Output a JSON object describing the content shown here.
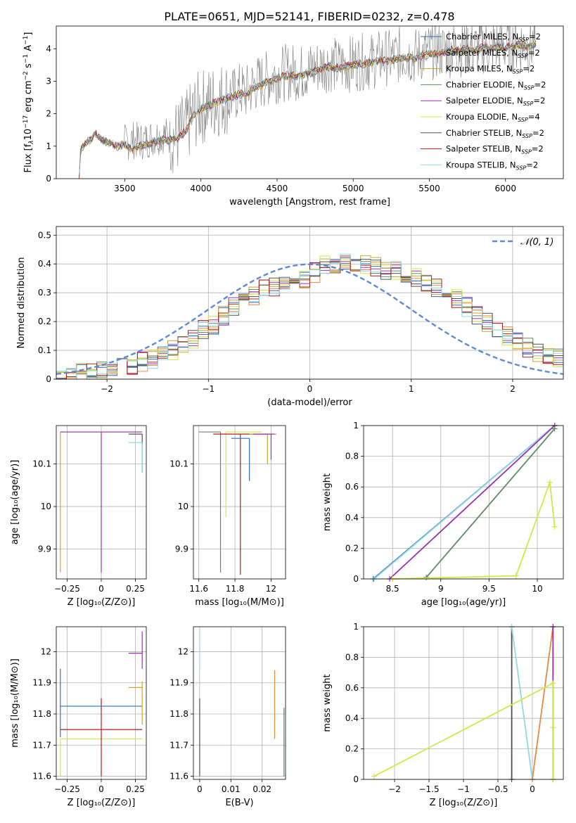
{
  "figure_title": "PLATE=0651, MJD=52141, FIBERID=0232, z=0.478",
  "legend_entries": [
    {
      "label": "Chabrier MILES, N",
      "sub": "SSP",
      "suffix": "=2",
      "color": "#2e6fb4"
    },
    {
      "label": "Salpeter MILES, N",
      "sub": "SSP",
      "suffix": "=2",
      "color": "#e58a3e"
    },
    {
      "label": "Kroupa MILES, N",
      "sub": "SSP",
      "suffix": "=2",
      "color": "#c9a43a"
    },
    {
      "label": "Chabrier ELODIE, N",
      "sub": "SSP",
      "suffix": "=2",
      "color": "#5e8c62"
    },
    {
      "label": "Salpeter ELODIE, N",
      "sub": "SSP",
      "suffix": "=2",
      "color": "#9b31b0"
    },
    {
      "label": "Kroupa ELODIE, N",
      "sub": "SSP",
      "suffix": "=4",
      "color": "#d4e64a"
    },
    {
      "label": "Chabrier STELIB, N",
      "sub": "SSP",
      "suffix": "=2",
      "color": "#505050"
    },
    {
      "label": "Salpeter STELIB, N",
      "sub": "SSP",
      "suffix": "=2",
      "color": "#b01c1c"
    },
    {
      "label": "Kroupa STELIB, N",
      "sub": "SSP",
      "suffix": "=2",
      "color": "#92d9e4"
    }
  ],
  "chart_data": [
    {
      "id": "spectrum",
      "type": "line",
      "xlabel": "wavelength [Angstrom, rest frame]",
      "ylabel": "Flux [f_λ 10^-17 erg cm^-2 s^-1 A^-1]",
      "xlim": [
        3050,
        6380
      ],
      "ylim": [
        0,
        4.7
      ],
      "xticks": [
        3500,
        4000,
        4500,
        5000,
        5500,
        6000
      ],
      "yticks": [
        0,
        1,
        2,
        3,
        4
      ],
      "data_x": [
        3200,
        3210,
        3240,
        3280,
        3300,
        3350,
        3400,
        3450,
        3500,
        3550,
        3600,
        3650,
        3700,
        3750,
        3800,
        3850,
        3900,
        3950,
        4000,
        4050,
        4100,
        4150,
        4200,
        4250,
        4300,
        4350,
        4400,
        4450,
        4500,
        4550,
        4600,
        4650,
        4700,
        4750,
        4800,
        4850,
        4900,
        4950,
        5000,
        5050,
        5100,
        5150,
        5200,
        5250,
        5300,
        5350,
        5400,
        5450,
        5500,
        5550,
        5600,
        5650,
        5700,
        5750,
        5800,
        5850,
        5900,
        5950,
        6000,
        6050,
        6100,
        6150,
        6200
      ],
      "data_y": [
        0,
        0.9,
        1.1,
        1.2,
        1.4,
        1.2,
        1.1,
        1.0,
        1.1,
        1.2,
        1.15,
        1.2,
        1.3,
        1.35,
        1.3,
        1.3,
        1.5,
        2.0,
        2.2,
        2.3,
        2.4,
        2.5,
        2.5,
        2.7,
        2.65,
        2.9,
        3.0,
        3.1,
        3.2,
        3.25,
        3.3,
        3.25,
        3.35,
        3.4,
        3.5,
        3.55,
        3.45,
        3.5,
        3.55,
        3.6,
        3.6,
        3.65,
        3.75,
        3.7,
        3.8,
        3.85,
        3.75,
        3.85,
        3.9,
        3.95,
        3.95,
        4.0,
        4.0,
        4.05,
        4.0,
        4.1,
        4.05,
        4.1,
        4.1,
        4.15,
        4.15,
        4.1,
        4.2
      ],
      "model_y": [
        0,
        0.9,
        1.1,
        1.2,
        1.4,
        1.2,
        1.1,
        1.0,
        1.05,
        0.9,
        1.0,
        1.05,
        1.15,
        1.2,
        1.2,
        1.25,
        1.45,
        1.95,
        2.15,
        2.25,
        2.35,
        2.45,
        2.5,
        2.6,
        2.6,
        2.8,
        2.9,
        3.0,
        3.1,
        3.15,
        3.2,
        3.15,
        3.25,
        3.3,
        3.4,
        3.45,
        3.4,
        3.45,
        3.5,
        3.55,
        3.55,
        3.6,
        3.65,
        3.65,
        3.7,
        3.75,
        3.7,
        3.8,
        3.85,
        3.85,
        3.9,
        3.95,
        3.95,
        4.0,
        3.95,
        4.05,
        4.0,
        4.05,
        4.05,
        4.1,
        4.1,
        4.05,
        4.15
      ]
    },
    {
      "id": "residuals",
      "type": "histogram",
      "xlabel": "(data-model)/error",
      "ylabel": "Normed distribution",
      "xlim": [
        -2.5,
        2.5
      ],
      "ylim": [
        0,
        0.53
      ],
      "xticks": [
        -2,
        -1,
        0,
        1,
        2
      ],
      "yticks": [
        0.0,
        0.1,
        0.2,
        0.3,
        0.4,
        0.5
      ],
      "legend": "N(0,1)",
      "bin_edges": [
        -2.5,
        -2.4,
        -2.3,
        -2.2,
        -2.1,
        -2.0,
        -1.9,
        -1.8,
        -1.7,
        -1.6,
        -1.5,
        -1.4,
        -1.3,
        -1.2,
        -1.1,
        -1.0,
        -0.9,
        -0.8,
        -0.7,
        -0.6,
        -0.5,
        -0.4,
        -0.3,
        -0.2,
        -0.1,
        0.0,
        0.1,
        0.2,
        0.3,
        0.4,
        0.5,
        0.6,
        0.7,
        0.8,
        0.9,
        1.0,
        1.1,
        1.2,
        1.3,
        1.4,
        1.5,
        1.6,
        1.7,
        1.8,
        1.9,
        2.0,
        2.1,
        2.2,
        2.3,
        2.4,
        2.5
      ],
      "values": [
        0.01,
        0.01,
        0.02,
        0.02,
        0.03,
        0.03,
        0.04,
        0.05,
        0.06,
        0.07,
        0.08,
        0.1,
        0.12,
        0.14,
        0.17,
        0.19,
        0.22,
        0.25,
        0.27,
        0.29,
        0.31,
        0.32,
        0.33,
        0.34,
        0.35,
        0.37,
        0.38,
        0.38,
        0.39,
        0.38,
        0.38,
        0.37,
        0.36,
        0.36,
        0.35,
        0.33,
        0.32,
        0.3,
        0.28,
        0.26,
        0.23,
        0.2,
        0.18,
        0.15,
        0.13,
        0.11,
        0.09,
        0.07,
        0.06,
        0.05
      ]
    },
    {
      "id": "age_vs_Z",
      "type": "scatter",
      "xlabel": "Z [log10(Z/Z⊙)]",
      "ylabel": "age [log10(age/yr)]",
      "xlim": [
        -0.33,
        0.33
      ],
      "ylim": [
        9.83,
        10.19
      ],
      "xticks": [
        -0.25,
        0.0,
        0.25
      ],
      "yticks": [
        9.9,
        10.0,
        10.1
      ],
      "points": [
        {
          "x": -0.3,
          "y": 10.175,
          "xerr": [
            0.0,
            0.6
          ],
          "yerr": [
            0.33,
            0.0
          ]
        },
        {
          "x": 0.0,
          "y": 10.175,
          "xerr": [
            0.3,
            0.3
          ],
          "yerr": [
            0.33,
            0.0
          ]
        },
        {
          "x": 0.3,
          "y": 10.17,
          "xerr": [
            0.1,
            0.0
          ],
          "yerr": [
            0.09,
            0.0
          ]
        },
        {
          "x": 0.3,
          "y": 10.15,
          "xerr": [
            0.1,
            0.0
          ],
          "yerr": [
            0.07,
            0.0
          ]
        }
      ]
    },
    {
      "id": "age_vs_mass",
      "type": "scatter",
      "xlabel": "mass [log10(M/M⊙)]",
      "ylabel": "",
      "xlim": [
        11.57,
        12.08
      ],
      "ylim": [
        9.83,
        10.19
      ],
      "xticks": [
        11.6,
        11.8,
        12.0
      ],
      "yticks": [
        9.9,
        10.0,
        10.1
      ],
      "points": [
        {
          "x": 11.72,
          "y": 10.175,
          "xerr": [
            0.12,
            0.0
          ],
          "yerr": [
            0.33,
            0.0
          ]
        },
        {
          "x": 11.75,
          "y": 10.175,
          "xerr": [
            0.0,
            0.2
          ],
          "yerr": [
            0.2,
            0.0
          ]
        },
        {
          "x": 11.83,
          "y": 10.17,
          "xerr": [
            0.15,
            0.15
          ],
          "yerr": [
            0.33,
            0.0
          ]
        },
        {
          "x": 11.88,
          "y": 10.16,
          "xerr": [
            0.1,
            0.0
          ],
          "yerr": [
            0.1,
            0.0
          ]
        },
        {
          "x": 11.98,
          "y": 10.17,
          "xerr": [
            0.1,
            0.05
          ],
          "yerr": [
            0.07,
            0.0
          ]
        },
        {
          "x": 12.0,
          "y": 10.17,
          "xerr": [
            0.1,
            0.02
          ],
          "yerr": [
            0.06,
            0.0
          ]
        }
      ]
    },
    {
      "id": "massweight_vs_age",
      "type": "line",
      "xlabel": "age [log10(age/yr)]",
      "ylabel": "mass weight",
      "xlim": [
        8.2,
        10.27
      ],
      "ylim": [
        0,
        1.0
      ],
      "xticks": [
        8.5,
        9.0,
        9.5,
        10.0
      ],
      "yticks": [
        0.0,
        0.2,
        0.4,
        0.6,
        0.8,
        1.0
      ],
      "series": [
        {
          "x": [
            8.3,
            10.18
          ],
          "y": [
            0.0,
            1.0
          ],
          "color": "#2e6fb4"
        },
        {
          "x": [
            8.31,
            10.18
          ],
          "y": [
            0.0,
            1.0
          ],
          "color": "#92d9e4"
        },
        {
          "x": [
            8.47,
            10.18
          ],
          "y": [
            0.0,
            1.0
          ],
          "color": "#9b31b0"
        },
        {
          "x": [
            8.85,
            10.18
          ],
          "y": [
            0.01,
            0.98
          ],
          "color": "#5e8c62"
        },
        {
          "x": [
            8.5,
            9.78,
            10.13,
            10.18
          ],
          "y": [
            0.0,
            0.02,
            0.63,
            0.34
          ],
          "color": "#d4e64a"
        }
      ]
    },
    {
      "id": "mass_vs_Z",
      "type": "scatter",
      "xlabel": "Z [log10(Z/Z⊙)]",
      "ylabel": "mass [log10(M/M⊙)]",
      "xlim": [
        -0.33,
        0.33
      ],
      "ylim": [
        11.59,
        12.08
      ],
      "xticks": [
        -0.25,
        0.0,
        0.25
      ],
      "yticks": [
        11.6,
        11.7,
        11.8,
        11.9,
        12.0
      ],
      "points": [
        {
          "x": -0.3,
          "y": 11.72,
          "xerr": [
            0.0,
            0.6
          ],
          "yerr": [
            0.12,
            0.0
          ]
        },
        {
          "x": 0.0,
          "y": 11.75,
          "xerr": [
            0.3,
            0.3
          ],
          "yerr": [
            0.15,
            0.1
          ]
        },
        {
          "x": -0.3,
          "y": 11.825,
          "xerr": [
            0.0,
            0.6
          ],
          "yerr": [
            0.1,
            0.12
          ]
        },
        {
          "x": 0.3,
          "y": 11.885,
          "xerr": [
            0.1,
            0.0
          ],
          "yerr": [
            0.12,
            0.02
          ]
        },
        {
          "x": 0.3,
          "y": 11.995,
          "xerr": [
            0.1,
            0.0
          ],
          "yerr": [
            0.05,
            0.07
          ]
        }
      ]
    },
    {
      "id": "mass_vs_ebv",
      "type": "scatter",
      "xlabel": "E(B-V)",
      "ylabel": "",
      "xlim": [
        -0.002,
        0.0275
      ],
      "ylim": [
        11.59,
        12.08
      ],
      "xticks": [
        0.0,
        0.01,
        0.02
      ],
      "yticks": [
        11.6,
        11.7,
        11.8,
        11.9,
        12.0
      ],
      "points": [
        {
          "x": 0.0,
          "y": 11.75,
          "yerr": [
            0.15,
            0.1
          ]
        },
        {
          "x": 0.0,
          "y": 12.0,
          "yerr": [
            0.05,
            0.06
          ]
        },
        {
          "x": 0.024,
          "y": 11.82,
          "yerr": [
            0.1,
            0.12
          ]
        },
        {
          "x": 0.027,
          "y": 11.72,
          "yerr": [
            0.12,
            0.1
          ]
        }
      ]
    },
    {
      "id": "massweight_vs_Z",
      "type": "line",
      "xlabel": "Z [log10(Z/Z⊙)]",
      "ylabel": "mass weight",
      "xlim": [
        -2.45,
        0.45
      ],
      "ylim": [
        0,
        1.0
      ],
      "xticks": [
        -2.0,
        -1.5,
        -1.0,
        -0.5,
        0.0
      ],
      "yticks": [
        0.0,
        0.2,
        0.4,
        0.6,
        0.8,
        1.0
      ],
      "series": [
        {
          "x": [
            -0.3,
            -0.3
          ],
          "y": [
            0.0,
            1.0
          ],
          "color": "#505050"
        },
        {
          "x": [
            -0.3,
            0.0
          ],
          "y": [
            1.0,
            0.0
          ],
          "color": "#92d9e4"
        },
        {
          "x": [
            0.0,
            0.3
          ],
          "y": [
            0.0,
            1.0
          ],
          "color": "#e58a3e"
        },
        {
          "x": [
            0.3,
            0.3
          ],
          "y": [
            0.0,
            1.0
          ],
          "color": "#9b31b0"
        },
        {
          "x": [
            -2.3,
            0.3,
            0.3,
            0.3
          ],
          "y": [
            0.02,
            0.63,
            0.34,
            0.0
          ],
          "color": "#d4e64a"
        }
      ]
    }
  ]
}
